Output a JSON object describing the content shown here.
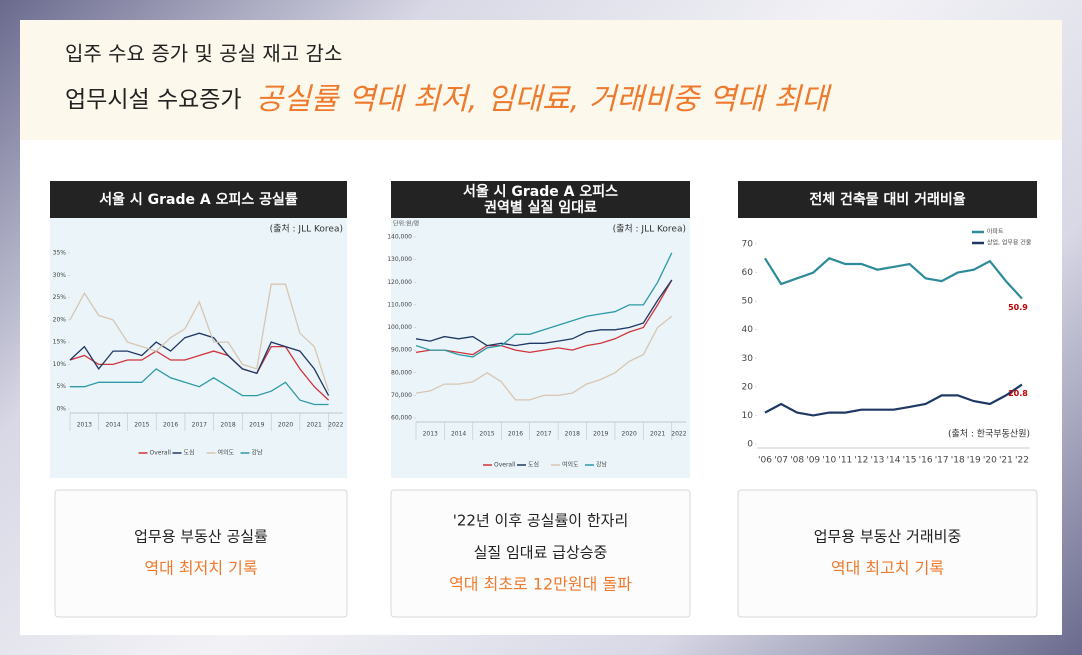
{
  "header": {
    "subtitle": "입주 수요 증가 및 공실 재고 감소",
    "title_plain": "업무시설 수요증가",
    "title_highlight": "공실률 역대 최저, 임대료, 거래비중 역대 최대"
  },
  "chart_data": [
    {
      "type": "line",
      "title": [
        "서울 시 Grade A 오피스 공실률"
      ],
      "source": "(출처 : JLL Korea)",
      "x": [
        2013,
        2013.5,
        2014,
        2014.5,
        2015,
        2015.5,
        2016,
        2016.5,
        2017,
        2017.5,
        2018,
        2018.5,
        2019,
        2019.5,
        2020,
        2020.5,
        2021,
        2021.5,
        2022
      ],
      "xlim": [
        2013,
        2022.5
      ],
      "xticks": [
        {
          "value": 2013,
          "label": "2013"
        },
        {
          "value": 2014,
          "label": "2014"
        },
        {
          "value": 2015,
          "label": "2015"
        },
        {
          "value": 2016,
          "label": "2016"
        },
        {
          "value": 2017,
          "label": "2017"
        },
        {
          "value": 2018,
          "label": "2018"
        },
        {
          "value": 2019,
          "label": "2019"
        },
        {
          "value": 2020,
          "label": "2020"
        },
        {
          "value": 2021,
          "label": "2021"
        },
        {
          "value": 2022,
          "label": "2022"
        }
      ],
      "ylim": [
        0,
        35
      ],
      "yticks": [
        {
          "value": 0,
          "label": "0%"
        },
        {
          "value": 5,
          "label": "5%"
        },
        {
          "value": 10,
          "label": "10%"
        },
        {
          "value": 15,
          "label": "15%"
        },
        {
          "value": 20,
          "label": "20%"
        },
        {
          "value": 25,
          "label": "25%"
        },
        {
          "value": 30,
          "label": "30%"
        },
        {
          "value": 35,
          "label": "35%"
        }
      ],
      "grid": false,
      "legend": "bottom",
      "series": [
        {
          "name": "Overall",
          "color": "#d0343a",
          "values": [
            11,
            12,
            10,
            10,
            11,
            11,
            13,
            11,
            11,
            12,
            13,
            12,
            9,
            8,
            14,
            14,
            9,
            5,
            2
          ]
        },
        {
          "name": "도심",
          "color": "#1f3864",
          "values": [
            11,
            14,
            9,
            13,
            13,
            12,
            15,
            13,
            16,
            17,
            16,
            12,
            9,
            8,
            15,
            14,
            13,
            9,
            3
          ]
        },
        {
          "name": "여의도",
          "color": "#d8c6b2",
          "values": [
            20,
            26,
            21,
            20,
            15,
            14,
            13,
            16,
            18,
            24,
            15,
            15,
            10,
            9,
            28,
            28,
            17,
            14,
            4
          ]
        },
        {
          "name": "강남",
          "color": "#2e9aa6",
          "values": [
            5,
            5,
            6,
            6,
            6,
            6,
            9,
            7,
            6,
            5,
            7,
            5,
            3,
            3,
            4,
            6,
            2,
            1,
            1
          ]
        }
      ]
    },
    {
      "type": "line",
      "title": [
        "서울 시 Grade A 오피스",
        "권역별 실질 임대료"
      ],
      "source": "(출처 : JLL Korea)",
      "unit": "단위:원/평",
      "x": [
        2013,
        2013.5,
        2014,
        2014.5,
        2015,
        2015.5,
        2016,
        2016.5,
        2017,
        2017.5,
        2018,
        2018.5,
        2019,
        2019.5,
        2020,
        2020.5,
        2021,
        2021.5,
        2022
      ],
      "xlim": [
        2013,
        2022.5
      ],
      "xticks": [
        {
          "value": 2013,
          "label": "2013"
        },
        {
          "value": 2014,
          "label": "2014"
        },
        {
          "value": 2015,
          "label": "2015"
        },
        {
          "value": 2016,
          "label": "2016"
        },
        {
          "value": 2017,
          "label": "2017"
        },
        {
          "value": 2018,
          "label": "2018"
        },
        {
          "value": 2019,
          "label": "2019"
        },
        {
          "value": 2020,
          "label": "2020"
        },
        {
          "value": 2021,
          "label": "2021"
        },
        {
          "value": 2022,
          "label": "2022"
        }
      ],
      "ylim": [
        60000,
        140000
      ],
      "yticks": [
        {
          "value": 60000,
          "label": "60,000"
        },
        {
          "value": 70000,
          "label": "70,000"
        },
        {
          "value": 80000,
          "label": "80,000"
        },
        {
          "value": 90000,
          "label": "90,000"
        },
        {
          "value": 100000,
          "label": "100,000"
        },
        {
          "value": 110000,
          "label": "110,000"
        },
        {
          "value": 120000,
          "label": "120,000"
        },
        {
          "value": 130000,
          "label": "130,000"
        },
        {
          "value": 140000,
          "label": "140,000"
        }
      ],
      "grid": false,
      "legend": "bottom",
      "series": [
        {
          "name": "Overall",
          "color": "#d0343a",
          "values": [
            89000,
            90000,
            90000,
            89000,
            88000,
            92000,
            92000,
            90000,
            89000,
            90000,
            91000,
            90000,
            92000,
            93000,
            95000,
            98000,
            100000,
            110000,
            121000
          ]
        },
        {
          "name": "도심",
          "color": "#1f3864",
          "values": [
            95000,
            94000,
            96000,
            95000,
            96000,
            92000,
            93000,
            92000,
            93000,
            93000,
            94000,
            95000,
            98000,
            99000,
            99000,
            100000,
            102000,
            112000,
            121000
          ]
        },
        {
          "name": "여의도",
          "color": "#d8c6b2",
          "values": [
            71000,
            72000,
            75000,
            75000,
            76000,
            80000,
            76000,
            68000,
            68000,
            70000,
            70000,
            71000,
            75000,
            77000,
            80000,
            85000,
            88000,
            100000,
            105000
          ]
        },
        {
          "name": "강남",
          "color": "#2e9aa6",
          "values": [
            92000,
            90000,
            90000,
            88000,
            87000,
            91000,
            92000,
            97000,
            97000,
            99000,
            101000,
            103000,
            105000,
            106000,
            107000,
            110000,
            110000,
            120000,
            133000
          ]
        }
      ]
    },
    {
      "type": "line",
      "title": [
        "전체 건축물 대비 거래비율"
      ],
      "source": "(출처 : 한국부동산원)",
      "categories": [
        "'06",
        "'07",
        "'08",
        "'09",
        "'10",
        "'11",
        "'12",
        "'13",
        "'14",
        "'15",
        "'16",
        "'17",
        "'18",
        "'19",
        "'20",
        "'21",
        "'22"
      ],
      "ylim": [
        0,
        70
      ],
      "yticks": [
        0,
        10,
        20,
        30,
        40,
        50,
        60,
        70
      ],
      "grid": false,
      "legend": "top-right",
      "end_labels": true,
      "end_label_color": "#c00000",
      "series": [
        {
          "name": "아파트",
          "color": "#2e8b9a",
          "values": [
            65,
            56,
            58,
            60,
            65,
            63,
            63,
            61,
            62,
            63,
            58,
            57,
            60,
            61,
            64,
            57,
            50.9
          ]
        },
        {
          "name": "상업, 업무용 건물",
          "color": "#1f3864",
          "values": [
            11,
            14,
            11,
            10,
            11,
            11,
            12,
            12,
            12,
            13,
            14,
            17,
            17,
            15,
            14,
            17,
            20.8
          ]
        }
      ]
    }
  ],
  "notes": [
    {
      "lines": [
        "업무용 부동산 공실률"
      ],
      "highlight": [
        "역대 최저치 기록"
      ]
    },
    {
      "lines": [
        "'22년 이후 공실률이 한자리",
        "실질 임대료 급상승중"
      ],
      "highlight": [
        "역대 최초로 12만원대 돌파"
      ]
    },
    {
      "lines": [
        "업무용 부동산 거래비중"
      ],
      "highlight": [
        "역대 최고치 기록"
      ]
    }
  ]
}
